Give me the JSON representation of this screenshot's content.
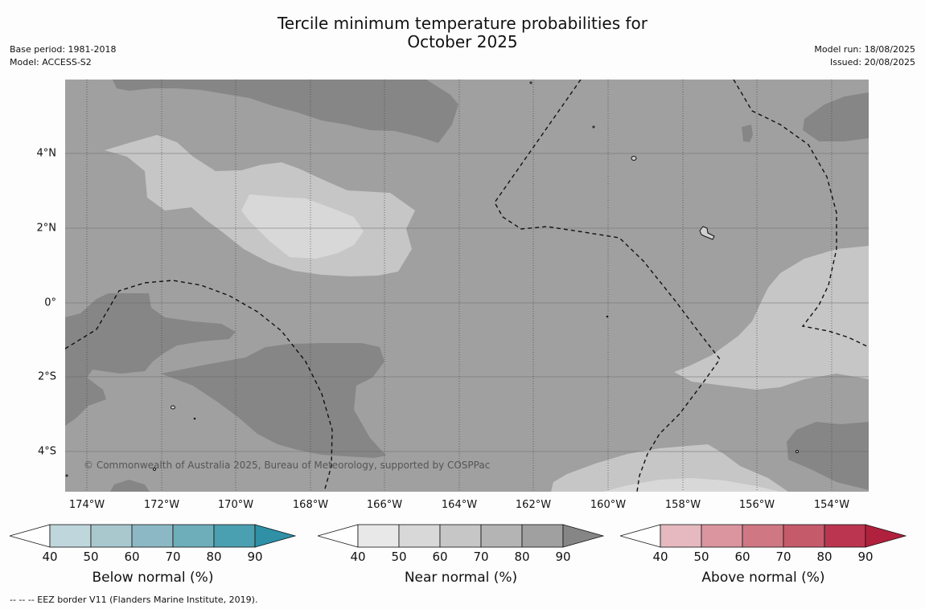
{
  "title": {
    "line1": "Tercile minimum temperature probabilities for",
    "line2": "October 2025"
  },
  "meta_left": {
    "base_period": "Base period: 1981-2018",
    "model": "Model: ACCESS-S2"
  },
  "meta_right": {
    "model_run": "Model run: 18/08/2025",
    "issued": "Issued: 20/08/2025"
  },
  "map": {
    "lat_labels": [
      "4°N",
      "2°N",
      "0°",
      "2°S",
      "4°S"
    ],
    "lon_labels": [
      "174°W",
      "172°W",
      "170°W",
      "168°W",
      "166°W",
      "164°W",
      "162°W",
      "160°W",
      "158°W",
      "156°W",
      "154°W"
    ],
    "copyright": "© Commonwealth of Australia 2025, Bureau of Meteorology, supported by COSPPac",
    "colors": {
      "base": "#a0a0a0",
      "near_dark": "#868686",
      "near_light": "#c6c6c6",
      "near_lightest": "#d8d8d8"
    }
  },
  "colorbars": [
    {
      "label": "Below normal (%)",
      "ticks": [
        "40",
        "50",
        "60",
        "70",
        "80",
        "90"
      ],
      "colors": [
        "#bfd6dc",
        "#a8c8ce",
        "#8bb8c4",
        "#6eaebb",
        "#4aa0b0",
        "#2f90a6"
      ]
    },
    {
      "label": "Near normal (%)",
      "ticks": [
        "40",
        "50",
        "60",
        "70",
        "80",
        "90"
      ],
      "colors": [
        "#e8e8e8",
        "#d8d8d8",
        "#c6c6c6",
        "#b4b4b4",
        "#a0a0a0",
        "#868686"
      ]
    },
    {
      "label": "Above normal (%)",
      "ticks": [
        "40",
        "50",
        "60",
        "70",
        "80",
        "90"
      ],
      "colors": [
        "#e5b9bf",
        "#db959f",
        "#cf7883",
        "#c55a6b",
        "#bb3550",
        "#b0213e"
      ]
    }
  ],
  "footnote": "--  --  -- EEZ border V11 (Flanders Marine Institute, 2019)."
}
